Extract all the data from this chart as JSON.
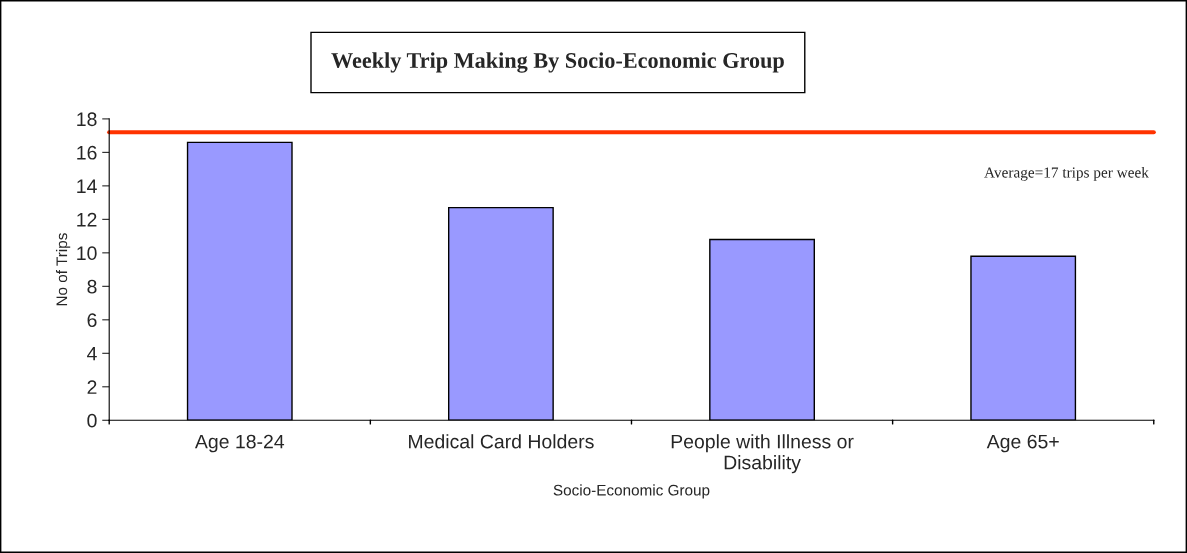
{
  "chart_data": {
    "type": "bar",
    "title": "Weekly Trip Making By Socio-Economic Group",
    "categories": [
      "Age 18-24",
      "Medical Card Holders",
      "People with Illness or\nDisability",
      "Age 65+"
    ],
    "values": [
      16.6,
      12.7,
      10.8,
      9.8
    ],
    "color": "#9999ff",
    "xlabel": "Socio-Economic Group",
    "ylabel": "No of Trips",
    "ylim": [
      0,
      18
    ],
    "yticks": [
      0,
      2,
      4,
      6,
      8,
      10,
      12,
      14,
      16,
      18
    ],
    "ref_lines": [
      {
        "axis": "y",
        "value": 17.2,
        "label": "Average=17 trips per week",
        "color": "#ff3300"
      }
    ],
    "grid": false,
    "legend": false
  }
}
